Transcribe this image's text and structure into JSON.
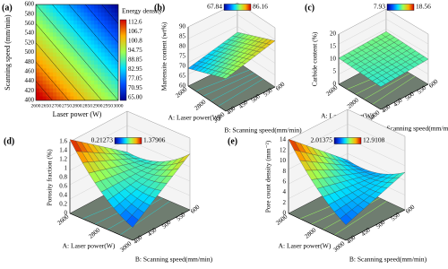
{
  "panels": [
    {
      "label": "(a)",
      "y_axis_label": "Scanning speed (mm/min)",
      "x_axis_label": "Laser power (W)",
      "yticks": [
        "600",
        "580",
        "560",
        "540",
        "520",
        "500",
        "480",
        "460",
        "440",
        "420",
        "400"
      ],
      "xticks": [
        "2600",
        "2650",
        "2700",
        "2750",
        "2800",
        "2850",
        "2900",
        "2950",
        "3000"
      ],
      "colorbar_title": "Energy density",
      "colorbar_ticks": [
        "112.6",
        "106.7",
        "100.8",
        "94.75",
        "88.85",
        "82.95",
        "77.05",
        "70.95",
        "65.00"
      ]
    },
    {
      "label": "(b)",
      "colorbar_min": "67.84",
      "colorbar_max": "86.16",
      "z_axis_label": "Martensite content (wt%)",
      "zticks": [
        "90",
        "85",
        "80",
        "75",
        "70",
        "65",
        "60"
      ],
      "a_axis_label": "A: Laser power(W)",
      "a_ticks": [
        "2600",
        "2800",
        "3000"
      ],
      "b_axis_label": "B: Scanning speed(mm/min)",
      "b_ticks": [
        "400",
        "450",
        "500",
        "550",
        "600"
      ]
    },
    {
      "label": "(c)",
      "colorbar_min": "7.93",
      "colorbar_max": "18.56",
      "z_axis_label": "Carbide content (%)",
      "zticks": [
        "20",
        "15",
        "10",
        "5",
        "0"
      ],
      "a_axis_label": "A: Laser power(W)",
      "a_ticks": [
        "2600",
        "2800",
        "3000"
      ],
      "b_axis_label": "B: Scanning speed(mm/min)",
      "b_ticks": [
        "400",
        "450",
        "500",
        "550",
        "600"
      ]
    },
    {
      "label": "(d)",
      "colorbar_min": "0.21273",
      "colorbar_max": "1.37906",
      "z_axis_label": "Porosity fraction (%)",
      "zticks": [
        "1.6",
        "1.4",
        "1.2",
        "1",
        "0.8",
        "0.6",
        "0.4",
        "0.2",
        "0"
      ],
      "a_axis_label": "A: Laser power(W)",
      "a_ticks": [
        "2600",
        "2800",
        "3000"
      ],
      "b_axis_label": "B: Scanning speed(mm/min)",
      "b_ticks": [
        "400",
        "450",
        "500",
        "550",
        "600"
      ]
    },
    {
      "label": "(e)",
      "colorbar_min": "2.01375",
      "colorbar_max": "12.9108",
      "z_axis_label": "Pore count density (mm⁻²)",
      "zticks": [
        "14",
        "12",
        "10",
        "8",
        "6",
        "4",
        "2",
        "0"
      ],
      "a_axis_label": "A: Laser power(W)",
      "a_ticks": [
        "2600",
        "2800",
        "3000"
      ],
      "b_axis_label": "B: Scanning speed(mm/min)",
      "b_ticks": [
        "400",
        "450",
        "500",
        "550",
        "600"
      ]
    }
  ]
}
